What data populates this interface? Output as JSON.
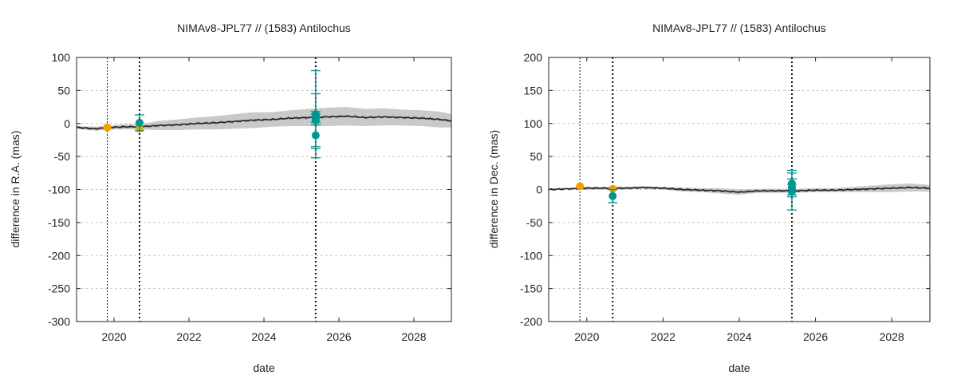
{
  "chart_data": [
    {
      "type": "scatter",
      "title": "NIMAv8-JPL77 // (1583) Antilochus",
      "xlabel": "date",
      "ylabel": "difference in R.A. (mas)",
      "xlim": [
        2019.0,
        2029.0
      ],
      "ylim": [
        -300,
        100
      ],
      "xticks": [
        2020,
        2022,
        2024,
        2026,
        2028
      ],
      "yticks": [
        -300,
        -250,
        -200,
        -150,
        -100,
        -50,
        0,
        50,
        100
      ],
      "grid": "horizontal dashed",
      "vlines": [
        {
          "x": 2019.82,
          "style": "thin dotted"
        },
        {
          "x": 2020.68,
          "style": "thick dotted"
        },
        {
          "x": 2025.38,
          "style": "thick dotted"
        }
      ],
      "model_line": {
        "x": [
          2019.0,
          2019.5,
          2019.9,
          2020.3,
          2020.7,
          2021.2,
          2021.7,
          2022.2,
          2022.7,
          2023.2,
          2023.7,
          2024.2,
          2024.7,
          2025.2,
          2025.7,
          2026.2,
          2026.7,
          2027.2,
          2027.7,
          2028.2,
          2028.7,
          2029.0
        ],
        "y": [
          -6,
          -8,
          -6,
          -5,
          -5,
          -3,
          -2,
          0,
          1,
          3,
          5,
          6,
          8,
          9,
          10,
          11,
          9,
          10,
          9,
          8,
          6,
          4
        ],
        "band": [
          2,
          3,
          3,
          4,
          4,
          7,
          8,
          9,
          10,
          11,
          12,
          11,
          12,
          13,
          14,
          14,
          13,
          13,
          12,
          12,
          12,
          10
        ]
      },
      "series": [
        {
          "name": "",
          "color": "#f5a000",
          "points": [
            {
              "x": 2019.82,
              "y": -6,
              "err": 0
            },
            {
              "x": 2020.68,
              "y": -8,
              "err": 0
            }
          ]
        },
        {
          "name": "",
          "color": "#009690",
          "points": [
            {
              "x": 2020.68,
              "y": 1,
              "err": 12
            },
            {
              "x": 2025.38,
              "y": 14,
              "err": 66
            },
            {
              "x": 2025.38,
              "y": 10,
              "err": 8
            },
            {
              "x": 2025.38,
              "y": 6,
              "err": 8
            },
            {
              "x": 2025.38,
              "y": -18,
              "err": 20
            },
            {
              "x": 2025.38,
              "y": 5,
              "err": 40
            }
          ]
        }
      ]
    },
    {
      "type": "scatter",
      "title": "NIMAv8-JPL77 // (1583) Antilochus",
      "xlabel": "date",
      "ylabel": "difference in Dec. (mas)",
      "xlim": [
        2019.0,
        2029.0
      ],
      "ylim": [
        -200,
        200
      ],
      "xticks": [
        2020,
        2022,
        2024,
        2026,
        2028
      ],
      "yticks": [
        -200,
        -150,
        -100,
        -50,
        0,
        50,
        100,
        150,
        200
      ],
      "grid": "horizontal dashed",
      "vlines": [
        {
          "x": 2019.82,
          "style": "thin dotted"
        },
        {
          "x": 2020.68,
          "style": "thick dotted"
        },
        {
          "x": 2025.38,
          "style": "thick dotted"
        }
      ],
      "model_line": {
        "x": [
          2019.0,
          2019.5,
          2020.0,
          2020.5,
          2021.0,
          2021.5,
          2022.0,
          2022.5,
          2023.0,
          2023.5,
          2024.0,
          2024.5,
          2025.0,
          2025.5,
          2026.0,
          2026.5,
          2027.0,
          2027.5,
          2028.0,
          2028.5,
          2029.0
        ],
        "y": [
          0,
          1,
          2,
          2,
          2,
          3,
          2,
          0,
          -1,
          -2,
          -4,
          -2,
          -2,
          -2,
          -1,
          -1,
          0,
          1,
          2,
          3,
          2
        ],
        "band": [
          1,
          1,
          2,
          2,
          2,
          2,
          2,
          3,
          3,
          4,
          4,
          3,
          3,
          3,
          3,
          3,
          4,
          5,
          6,
          6,
          5
        ]
      },
      "series": [
        {
          "name": "",
          "color": "#f5a000",
          "points": [
            {
              "x": 2019.82,
              "y": 5,
              "err": 0
            },
            {
              "x": 2020.68,
              "y": 1,
              "err": 0
            }
          ]
        },
        {
          "name": "",
          "color": "#009690",
          "points": [
            {
              "x": 2020.68,
              "y": -10,
              "err": 10
            },
            {
              "x": 2025.38,
              "y": 9,
              "err": 20
            },
            {
              "x": 2025.38,
              "y": 4,
              "err": 12
            },
            {
              "x": 2025.38,
              "y": 0,
              "err": 8
            },
            {
              "x": 2025.38,
              "y": -3,
              "err": 28
            }
          ]
        }
      ]
    }
  ]
}
